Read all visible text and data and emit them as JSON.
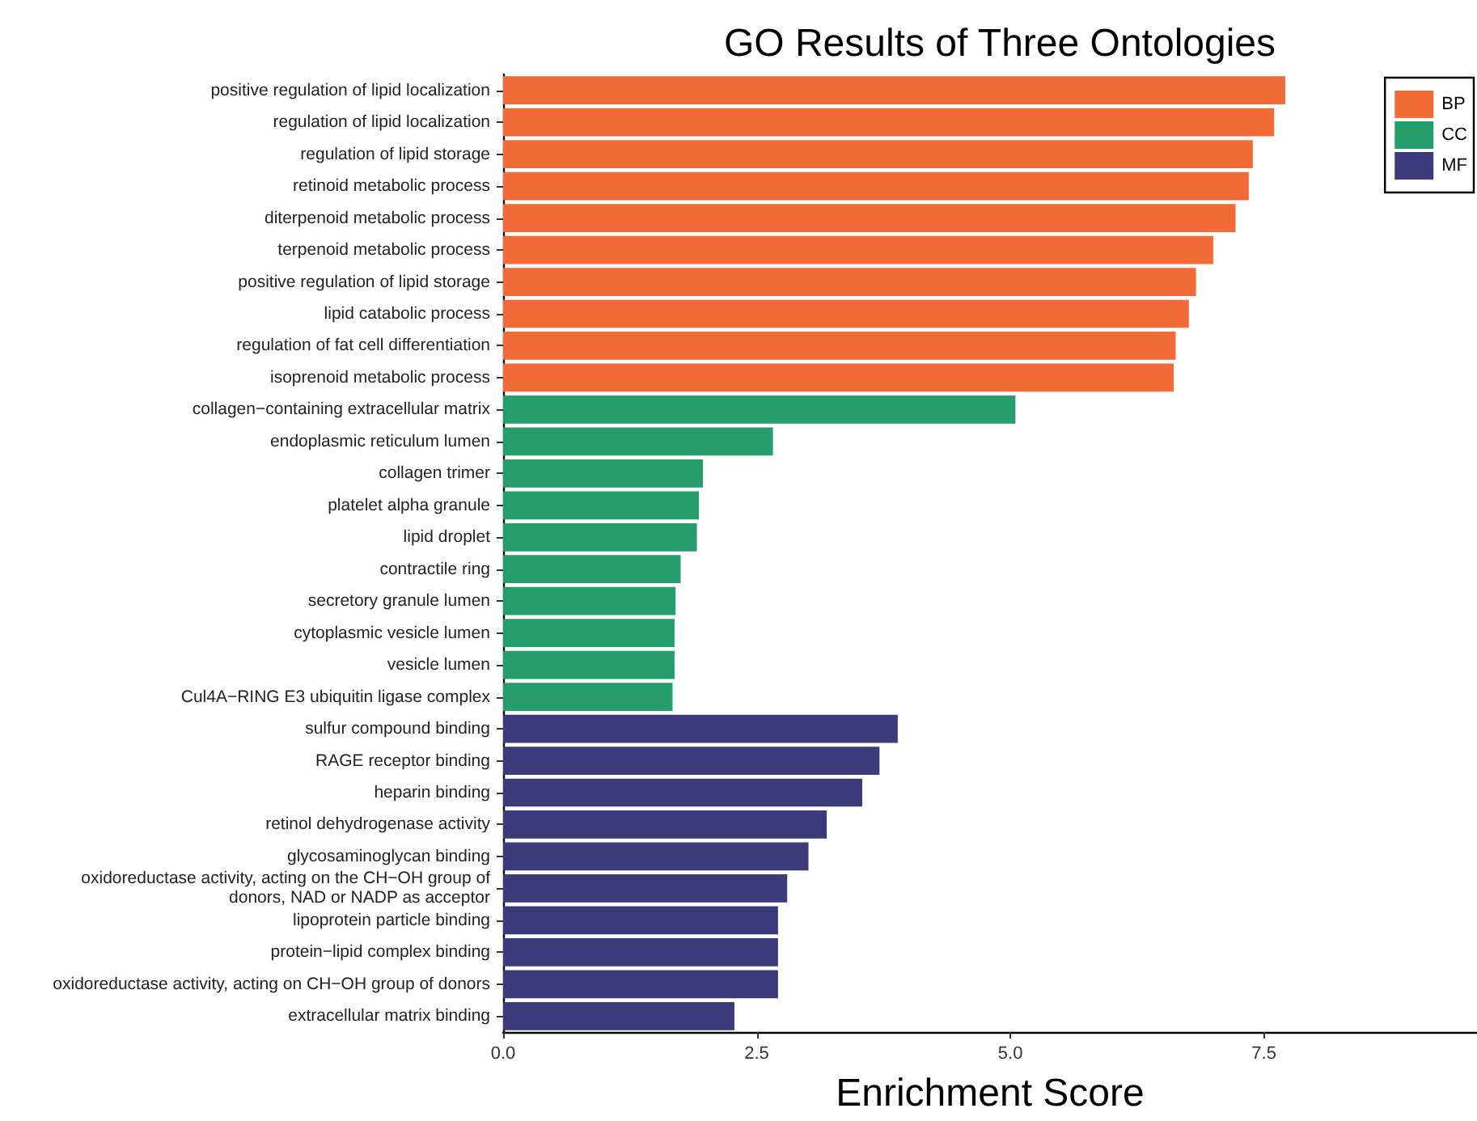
{
  "chart_data": {
    "type": "bar",
    "orientation": "horizontal",
    "title": "GO Results of Three Ontologies",
    "xlabel": "Enrichment Score",
    "categories": [
      "positive regulation of lipid localization",
      "regulation of lipid localization",
      "regulation of lipid storage",
      "retinoid metabolic process",
      "diterpenoid metabolic process",
      "terpenoid metabolic process",
      "positive regulation of lipid storage",
      "lipid catabolic process",
      "regulation of fat cell differentiation",
      "isoprenoid metabolic process",
      "collagen−containing extracellular matrix",
      "endoplasmic reticulum lumen",
      "collagen trimer",
      "platelet alpha granule",
      "lipid droplet",
      "contractile ring",
      "secretory granule lumen",
      "cytoplasmic vesicle lumen",
      "vesicle lumen",
      "Cul4A−RING E3 ubiquitin ligase complex",
      "sulfur compound binding",
      "RAGE receptor binding",
      "heparin binding",
      "retinol dehydrogenase activity",
      "glycosaminoglycan binding",
      "oxidoreductase activity, acting on the CH−OH group of\ndonors, NAD or NADP as acceptor",
      "lipoprotein particle binding",
      "protein−lipid complex binding",
      "oxidoreductase activity, acting on CH−OH group of donors",
      "extracellular matrix binding"
    ],
    "series": [
      {
        "name": "BP",
        "color": "#f26a38",
        "values": [
          7.71,
          7.6,
          7.39,
          7.35,
          7.22,
          7.0,
          6.83,
          6.76,
          6.63,
          6.61,
          null,
          null,
          null,
          null,
          null,
          null,
          null,
          null,
          null,
          null,
          null,
          null,
          null,
          null,
          null,
          null,
          null,
          null,
          null,
          null
        ]
      },
      {
        "name": "CC",
        "color": "#259d6c",
        "values": [
          null,
          null,
          null,
          null,
          null,
          null,
          null,
          null,
          null,
          null,
          5.05,
          2.66,
          1.97,
          1.93,
          1.91,
          1.75,
          1.7,
          1.69,
          1.69,
          1.67,
          null,
          null,
          null,
          null,
          null,
          null,
          null,
          null,
          null,
          null
        ]
      },
      {
        "name": "MF",
        "color": "#3a3b78",
        "values": [
          null,
          null,
          null,
          null,
          null,
          null,
          null,
          null,
          null,
          null,
          null,
          null,
          null,
          null,
          null,
          null,
          null,
          null,
          null,
          null,
          3.89,
          3.71,
          3.54,
          3.19,
          3.01,
          2.8,
          2.71,
          2.71,
          2.71,
          2.28
        ]
      }
    ],
    "xlim": [
      0,
      9.6
    ],
    "xticks": [
      {
        "value": 0,
        "label": "0.0"
      },
      2.5,
      {
        "value": 5,
        "label": "5.0"
      },
      7.5
    ],
    "grid": false,
    "legend": "top right"
  }
}
